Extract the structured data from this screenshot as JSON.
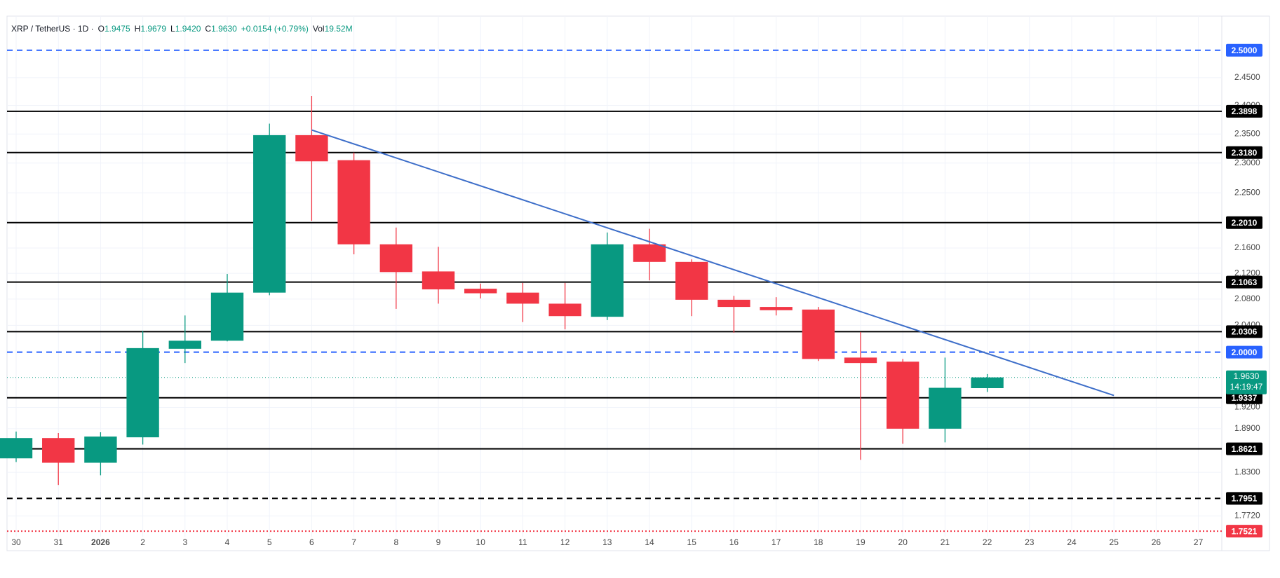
{
  "header": {
    "symbol": "XRP / TetherUS · 1D ·",
    "fields": [
      {
        "label": "O",
        "value": "1.9475"
      },
      {
        "label": "H",
        "value": "1.9679"
      },
      {
        "label": "L",
        "value": "1.9420"
      },
      {
        "label": "C",
        "value": "1.9630"
      }
    ],
    "change": "+0.0154 (+0.79%)",
    "volume_label": "Vol",
    "volume": "19.52M"
  },
  "chart_data": {
    "type": "candlestick",
    "log_scale": true,
    "grid": true,
    "up_color": "#089981",
    "down_color": "#f23645",
    "categories": [
      "30",
      "31",
      "2026",
      "2",
      "3",
      "4",
      "5",
      "6",
      "7",
      "8",
      "9",
      "10",
      "11",
      "12",
      "13",
      "14",
      "15",
      "16",
      "17",
      "18",
      "19",
      "20",
      "21",
      "22",
      "23",
      "24",
      "25",
      "26",
      "27"
    ],
    "open": [
      1.849,
      1.877,
      1.843,
      1.878,
      2.005,
      2.017,
      2.09,
      2.348,
      2.305,
      2.166,
      2.123,
      2.096,
      2.09,
      2.073,
      2.053,
      2.166,
      2.138,
      2.079,
      2.068,
      2.064,
      1.992,
      1.986,
      1.89,
      1.9475,
      null,
      null,
      null,
      null,
      null
    ],
    "high": [
      1.886,
      1.884,
      1.885,
      2.032,
      2.055,
      2.119,
      2.368,
      2.417,
      2.318,
      2.193,
      2.162,
      2.104,
      2.105,
      2.105,
      2.185,
      2.191,
      2.142,
      2.085,
      2.083,
      2.068,
      2.03,
      1.99,
      1.992,
      1.9679,
      null,
      null,
      null,
      null,
      null
    ],
    "low": [
      1.844,
      1.813,
      1.826,
      1.868,
      1.984,
      2.016,
      2.086,
      2.204,
      2.15,
      2.065,
      2.073,
      2.081,
      2.045,
      2.034,
      2.048,
      2.109,
      2.054,
      2.029,
      2.055,
      1.987,
      1.847,
      1.869,
      1.871,
      1.942,
      null,
      null,
      null,
      null,
      null
    ],
    "close": [
      1.877,
      1.843,
      1.879,
      2.006,
      2.017,
      2.09,
      2.348,
      2.303,
      2.166,
      2.122,
      2.095,
      2.089,
      2.073,
      2.054,
      2.166,
      2.138,
      2.079,
      2.068,
      2.063,
      1.99,
      1.984,
      1.89,
      1.948,
      1.963,
      null,
      null,
      null,
      null,
      null
    ],
    "ylim": [
      1.745,
      2.564
    ],
    "yticks": [
      {
        "value": 2.45,
        "label": "2.4500"
      },
      {
        "value": 2.4,
        "label": "2.4000"
      },
      {
        "value": 2.35,
        "label": "2.3500"
      },
      {
        "value": 2.3,
        "label": "2.3000"
      },
      {
        "value": 2.25,
        "label": "2.2500"
      },
      {
        "value": 2.16,
        "label": "2.1600"
      },
      {
        "value": 2.12,
        "label": "2.1200"
      },
      {
        "value": 2.08,
        "label": "2.0800"
      },
      {
        "value": 2.04,
        "label": "2.0400"
      },
      {
        "value": 1.92,
        "label": "1.9200"
      },
      {
        "value": 1.89,
        "label": "1.8900"
      },
      {
        "value": 1.83,
        "label": "1.8300"
      },
      {
        "value": 1.772,
        "label": "1.7720"
      }
    ],
    "levels": [
      {
        "value": 2.5,
        "label": "2.5000",
        "style": "dashed",
        "color": "#2962ff"
      },
      {
        "value": 2.3898,
        "label": "2.3898",
        "style": "solid",
        "color": "#000000"
      },
      {
        "value": 2.318,
        "label": "2.3180",
        "style": "solid",
        "color": "#000000"
      },
      {
        "value": 2.201,
        "label": "2.2010",
        "style": "solid",
        "color": "#000000"
      },
      {
        "value": 2.1063,
        "label": "2.1063",
        "style": "solid",
        "color": "#000000"
      },
      {
        "value": 2.0306,
        "label": "2.0306",
        "style": "solid",
        "color": "#000000"
      },
      {
        "value": 2.0,
        "label": "2.0000",
        "style": "dashed",
        "color": "#2962ff"
      },
      {
        "value": 1.9337,
        "label": "1.9337",
        "style": "solid",
        "color": "#000000"
      },
      {
        "value": 1.8621,
        "label": "1.8621",
        "style": "solid",
        "color": "#000000"
      },
      {
        "value": 1.7951,
        "label": "1.7951",
        "style": "dashed",
        "color": "#000000"
      },
      {
        "value": 1.7521,
        "label": "1.7521",
        "style": "dotted",
        "color": "#f23645"
      }
    ],
    "current_price": {
      "value": 1.963,
      "label": "1.9630",
      "countdown": "14:19:47"
    },
    "trendline": {
      "x": [
        "6",
        "25"
      ],
      "y": [
        2.357,
        1.937
      ],
      "color": "#3d6ec9"
    }
  }
}
